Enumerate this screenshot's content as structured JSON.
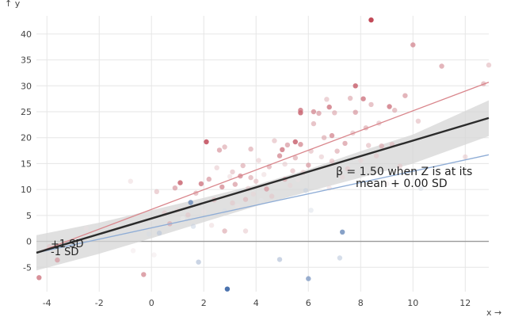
{
  "chart_data": {
    "type": "scatter",
    "xlabel": "x →",
    "ylabel": "↑ y",
    "xlim": [
      -4.4,
      12.9
    ],
    "ylim": [
      -9.7,
      43.5
    ],
    "x_ticks": [
      -4,
      -2,
      0,
      2,
      4,
      6,
      8,
      10,
      12
    ],
    "y_ticks": [
      -5,
      0,
      5,
      10,
      15,
      20,
      25,
      30,
      35,
      40
    ],
    "x_tick_labels": [
      "-4",
      "-2",
      "0",
      "2",
      "4",
      "6",
      "8",
      "10",
      "12"
    ],
    "y_tick_labels": [
      "-5",
      "0",
      "5",
      "10",
      "15",
      "20",
      "25",
      "30",
      "35",
      "40"
    ],
    "grid": true,
    "reference_line_y": 0,
    "points": [
      {
        "x": -4.3,
        "y": -7.0,
        "z": 0.8
      },
      {
        "x": -3.6,
        "y": -3.6,
        "z": 0.6
      },
      {
        "x": -3.9,
        "y": -1.0,
        "z": 0.3
      },
      {
        "x": -2.5,
        "y": 2.5,
        "z": 0.1
      },
      {
        "x": -1.3,
        "y": 3.5,
        "z": -0.1
      },
      {
        "x": -0.8,
        "y": 11.6,
        "z": 0.2
      },
      {
        "x": -0.7,
        "y": -1.8,
        "z": 0.1
      },
      {
        "x": -0.3,
        "y": -6.4,
        "z": 0.7
      },
      {
        "x": -0.1,
        "y": 1.4,
        "z": -0.2
      },
      {
        "x": 0.1,
        "y": -2.6,
        "z": 0.1
      },
      {
        "x": 0.2,
        "y": 9.6,
        "z": 0.4
      },
      {
        "x": 0.3,
        "y": 1.6,
        "z": -0.4
      },
      {
        "x": 0.5,
        "y": 5.5,
        "z": 0.3
      },
      {
        "x": 0.7,
        "y": 3.4,
        "z": 0.5
      },
      {
        "x": 0.9,
        "y": 10.3,
        "z": 0.6
      },
      {
        "x": 1.0,
        "y": 6.0,
        "z": 0.2
      },
      {
        "x": 1.1,
        "y": 11.3,
        "z": 0.9
      },
      {
        "x": 1.2,
        "y": 4.4,
        "z": 0.0
      },
      {
        "x": 1.4,
        "y": 5.1,
        "z": 0.3
      },
      {
        "x": 1.5,
        "y": 7.5,
        "z": -0.9
      },
      {
        "x": 1.6,
        "y": 2.9,
        "z": -0.3
      },
      {
        "x": 1.7,
        "y": 9.3,
        "z": 0.5
      },
      {
        "x": 1.8,
        "y": -4.0,
        "z": -0.5
      },
      {
        "x": 1.9,
        "y": 11.1,
        "z": 0.8
      },
      {
        "x": 2.0,
        "y": 5.7,
        "z": 0.1
      },
      {
        "x": 2.1,
        "y": 19.2,
        "z": 1.0
      },
      {
        "x": 2.2,
        "y": 12.0,
        "z": 0.6
      },
      {
        "x": 2.3,
        "y": 3.1,
        "z": 0.2
      },
      {
        "x": 2.4,
        "y": 8.0,
        "z": 0.4
      },
      {
        "x": 2.5,
        "y": 14.2,
        "z": 0.3
      },
      {
        "x": 2.6,
        "y": 17.6,
        "z": 0.6
      },
      {
        "x": 2.7,
        "y": 10.5,
        "z": 0.7
      },
      {
        "x": 2.8,
        "y": 18.2,
        "z": 0.5
      },
      {
        "x": 2.8,
        "y": 2.0,
        "z": 0.5
      },
      {
        "x": 2.8,
        "y": 5.9,
        "z": -0.2
      },
      {
        "x": 2.9,
        "y": -9.2,
        "z": -1.3
      },
      {
        "x": 3.0,
        "y": 12.5,
        "z": 0.2
      },
      {
        "x": 3.1,
        "y": 7.4,
        "z": 0.3
      },
      {
        "x": 3.1,
        "y": 13.4,
        "z": 0.4
      },
      {
        "x": 3.2,
        "y": 11.0,
        "z": 0.6
      },
      {
        "x": 3.3,
        "y": 6.8,
        "z": 0.1
      },
      {
        "x": 3.4,
        "y": 9.7,
        "z": -0.2
      },
      {
        "x": 3.4,
        "y": 12.6,
        "z": 0.7
      },
      {
        "x": 3.5,
        "y": 14.6,
        "z": 0.5
      },
      {
        "x": 3.6,
        "y": 8.1,
        "z": 0.4
      },
      {
        "x": 3.6,
        "y": 2.0,
        "z": 0.3
      },
      {
        "x": 3.7,
        "y": 10.2,
        "z": 0.3
      },
      {
        "x": 3.8,
        "y": 12.3,
        "z": 0.5
      },
      {
        "x": 3.8,
        "y": 17.8,
        "z": 0.5
      },
      {
        "x": 3.9,
        "y": 9.1,
        "z": 0.2
      },
      {
        "x": 4.0,
        "y": 11.6,
        "z": 0.4
      },
      {
        "x": 4.1,
        "y": 15.6,
        "z": 0.3
      },
      {
        "x": 4.2,
        "y": 7.9,
        "z": -0.1
      },
      {
        "x": 4.3,
        "y": 12.9,
        "z": 0.2
      },
      {
        "x": 4.4,
        "y": 10.1,
        "z": 0.6
      },
      {
        "x": 4.5,
        "y": 14.4,
        "z": 0.5
      },
      {
        "x": 4.6,
        "y": 8.7,
        "z": 0.3
      },
      {
        "x": 4.7,
        "y": 11.4,
        "z": 0.1
      },
      {
        "x": 4.7,
        "y": 19.4,
        "z": 0.4
      },
      {
        "x": 4.9,
        "y": 16.5,
        "z": 0.7
      },
      {
        "x": 4.9,
        "y": -3.5,
        "z": -0.5
      },
      {
        "x": 5.0,
        "y": 17.7,
        "z": 0.8
      },
      {
        "x": 5.1,
        "y": 12.0,
        "z": 0.5
      },
      {
        "x": 5.1,
        "y": 14.9,
        "z": 0.3
      },
      {
        "x": 5.2,
        "y": 18.6,
        "z": 0.6
      },
      {
        "x": 5.3,
        "y": 10.8,
        "z": 0.2
      },
      {
        "x": 5.4,
        "y": 13.6,
        "z": 0.4
      },
      {
        "x": 5.5,
        "y": 19.2,
        "z": 0.9
      },
      {
        "x": 5.5,
        "y": 16.1,
        "z": 0.5
      },
      {
        "x": 5.6,
        "y": 11.9,
        "z": 0.1
      },
      {
        "x": 5.7,
        "y": 18.7,
        "z": 0.7
      },
      {
        "x": 5.7,
        "y": 24.8,
        "z": 0.9
      },
      {
        "x": 5.7,
        "y": 25.3,
        "z": 0.8
      },
      {
        "x": 5.8,
        "y": 13.3,
        "z": 0.3
      },
      {
        "x": 5.9,
        "y": 9.8,
        "z": -0.3
      },
      {
        "x": 6.0,
        "y": -7.2,
        "z": -0.8
      },
      {
        "x": 6.0,
        "y": 14.7,
        "z": 0.6
      },
      {
        "x": 6.1,
        "y": 17.4,
        "z": 0.4
      },
      {
        "x": 6.1,
        "y": 6.0,
        "z": -0.2
      },
      {
        "x": 6.2,
        "y": 22.7,
        "z": 0.5
      },
      {
        "x": 6.2,
        "y": 25.0,
        "z": 0.7
      },
      {
        "x": 6.4,
        "y": 24.7,
        "z": 0.6
      },
      {
        "x": 6.5,
        "y": 16.3,
        "z": 0.3
      },
      {
        "x": 6.6,
        "y": 20.0,
        "z": 0.5
      },
      {
        "x": 6.7,
        "y": 27.4,
        "z": 0.4
      },
      {
        "x": 6.8,
        "y": 10.3,
        "z": 0.2
      },
      {
        "x": 6.8,
        "y": 25.9,
        "z": 0.8
      },
      {
        "x": 6.9,
        "y": 15.5,
        "z": 0.4
      },
      {
        "x": 6.9,
        "y": 20.4,
        "z": 0.7
      },
      {
        "x": 7.0,
        "y": 24.8,
        "z": 0.5
      },
      {
        "x": 7.1,
        "y": 17.4,
        "z": 0.5
      },
      {
        "x": 7.2,
        "y": -3.2,
        "z": -0.4
      },
      {
        "x": 7.3,
        "y": 1.8,
        "z": -0.9
      },
      {
        "x": 7.3,
        "y": 12.4,
        "z": 0.2
      },
      {
        "x": 7.4,
        "y": 18.9,
        "z": 0.6
      },
      {
        "x": 7.5,
        "y": 14.0,
        "z": 0.3
      },
      {
        "x": 7.6,
        "y": 27.6,
        "z": 0.5
      },
      {
        "x": 7.7,
        "y": 20.9,
        "z": 0.4
      },
      {
        "x": 7.8,
        "y": 24.9,
        "z": 0.6
      },
      {
        "x": 7.8,
        "y": 30.0,
        "z": 0.9
      },
      {
        "x": 8.0,
        "y": 15.6,
        "z": 0.2
      },
      {
        "x": 8.1,
        "y": 27.5,
        "z": 0.8
      },
      {
        "x": 8.2,
        "y": 21.9,
        "z": 0.5
      },
      {
        "x": 8.3,
        "y": 18.5,
        "z": 0.4
      },
      {
        "x": 8.4,
        "y": 42.7,
        "z": 1.2
      },
      {
        "x": 8.4,
        "y": 26.4,
        "z": 0.5
      },
      {
        "x": 8.6,
        "y": 16.5,
        "z": 0.3
      },
      {
        "x": 8.7,
        "y": 22.8,
        "z": 0.4
      },
      {
        "x": 8.8,
        "y": 18.4,
        "z": 0.5
      },
      {
        "x": 9.0,
        "y": 11.1,
        "z": 0.1
      },
      {
        "x": 9.1,
        "y": 26.0,
        "z": 0.8
      },
      {
        "x": 9.2,
        "y": 18.7,
        "z": 0.4
      },
      {
        "x": 9.3,
        "y": 25.3,
        "z": 0.5
      },
      {
        "x": 9.5,
        "y": 14.5,
        "z": 0.3
      },
      {
        "x": 9.7,
        "y": 28.1,
        "z": 0.6
      },
      {
        "x": 10.0,
        "y": 37.9,
        "z": 0.7
      },
      {
        "x": 10.2,
        "y": 23.2,
        "z": 0.4
      },
      {
        "x": 10.3,
        "y": 10.2,
        "z": -0.2
      },
      {
        "x": 11.1,
        "y": 33.8,
        "z": 0.6
      },
      {
        "x": 12.0,
        "y": 16.3,
        "z": 0.3
      },
      {
        "x": 12.7,
        "y": 30.4,
        "z": 0.5
      },
      {
        "x": 12.9,
        "y": 34.0,
        "z": 0.4
      }
    ],
    "fit_line": {
      "x1": -4.4,
      "y1": -2.2,
      "x2": 12.9,
      "y2": 23.8
    },
    "confidence_band": {
      "x": [
        -4.4,
        -2.0,
        0.0,
        2.0,
        4.0,
        6.0,
        8.0,
        10.0,
        12.9
      ],
      "lower": [
        -5.6,
        -2.4,
        0.6,
        3.7,
        6.8,
        9.6,
        12.3,
        15.0,
        20.3
      ],
      "upper": [
        1.2,
        3.6,
        6.0,
        8.4,
        10.9,
        13.9,
        17.4,
        20.6,
        27.2
      ]
    },
    "plus_sd_line": {
      "x1": -4.4,
      "y1": -2.2,
      "x2": 12.9,
      "y2": 30.7
    },
    "minus_sd_line": {
      "x1": -4.4,
      "y1": -2.2,
      "x2": 12.9,
      "y2": 16.7
    },
    "annotation_line1": "β = 1.50 when Z is at its",
    "annotation_line2": "mean + 0.00 SD",
    "plus_sd_label": "+1 SD",
    "minus_sd_label": "-1 SD",
    "colors": {
      "fit": "#2b2b2b",
      "band": "#d6d6d6",
      "plus_sd": "#d9868c",
      "minus_sd": "#8fadd6",
      "grid": "#e6e6e6",
      "zero": "#9a9a9a",
      "low": "#2c5aa0",
      "mid": "#f2f2f2",
      "high": "#b2182b"
    }
  }
}
